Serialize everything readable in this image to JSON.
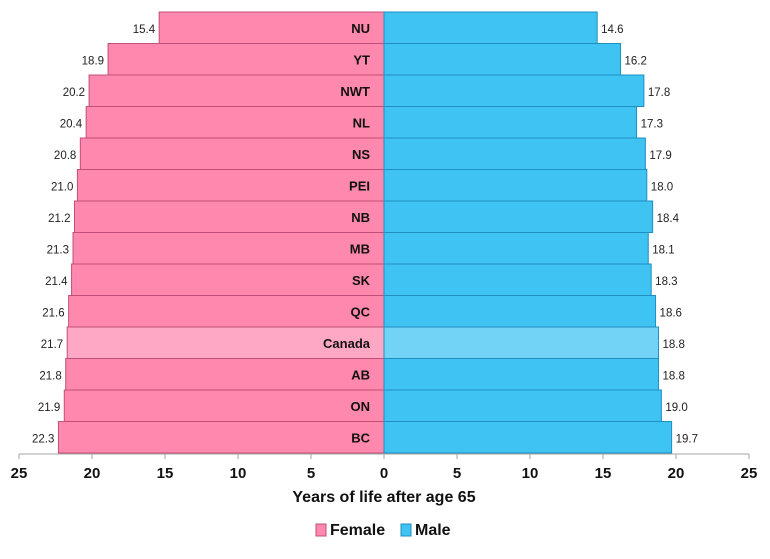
{
  "chart_data": {
    "type": "bar",
    "orientation": "horizontal-butterfly",
    "title": "",
    "xlabel": "Years of life after age 65",
    "ylabel": "",
    "xlim": [
      -25,
      25
    ],
    "x_ticks": [
      25,
      20,
      15,
      10,
      5,
      0,
      5,
      10,
      15,
      20,
      25
    ],
    "grid": false,
    "legend_position": "bottom",
    "categories": [
      "NU",
      "YT",
      "NWT",
      "NL",
      "NS",
      "PEI",
      "NB",
      "MB",
      "SK",
      "QC",
      "Canada",
      "AB",
      "ON",
      "BC"
    ],
    "highlight_category": "Canada",
    "series": [
      {
        "name": "Female",
        "side": "left",
        "values": [
          15.4,
          18.9,
          20.2,
          20.4,
          20.8,
          21.0,
          21.2,
          21.3,
          21.4,
          21.6,
          21.7,
          21.8,
          21.9,
          22.3
        ],
        "labels": [
          "15.4",
          "18.9",
          "20.2",
          "20.4",
          "20.8",
          "21.0",
          "21.2",
          "21.3",
          "21.4",
          "21.6",
          "21.7",
          "21.8",
          "21.9",
          "22.3"
        ],
        "color": "#FF88AE",
        "highlight_color": "#FFA8C6",
        "border": "#C0507A"
      },
      {
        "name": "Male",
        "side": "right",
        "values": [
          14.6,
          16.2,
          17.8,
          17.3,
          17.9,
          18.0,
          18.4,
          18.1,
          18.3,
          18.6,
          18.8,
          18.8,
          19.0,
          19.7
        ],
        "labels": [
          "14.6",
          "16.2",
          "17.8",
          "17.3",
          "17.9",
          "18.0",
          "18.4",
          "18.1",
          "18.3",
          "18.6",
          "18.8",
          "18.8",
          "19.0",
          "19.7"
        ],
        "color": "#3FC3F2",
        "highlight_color": "#72D3F6",
        "border": "#1E8FC0"
      }
    ]
  }
}
